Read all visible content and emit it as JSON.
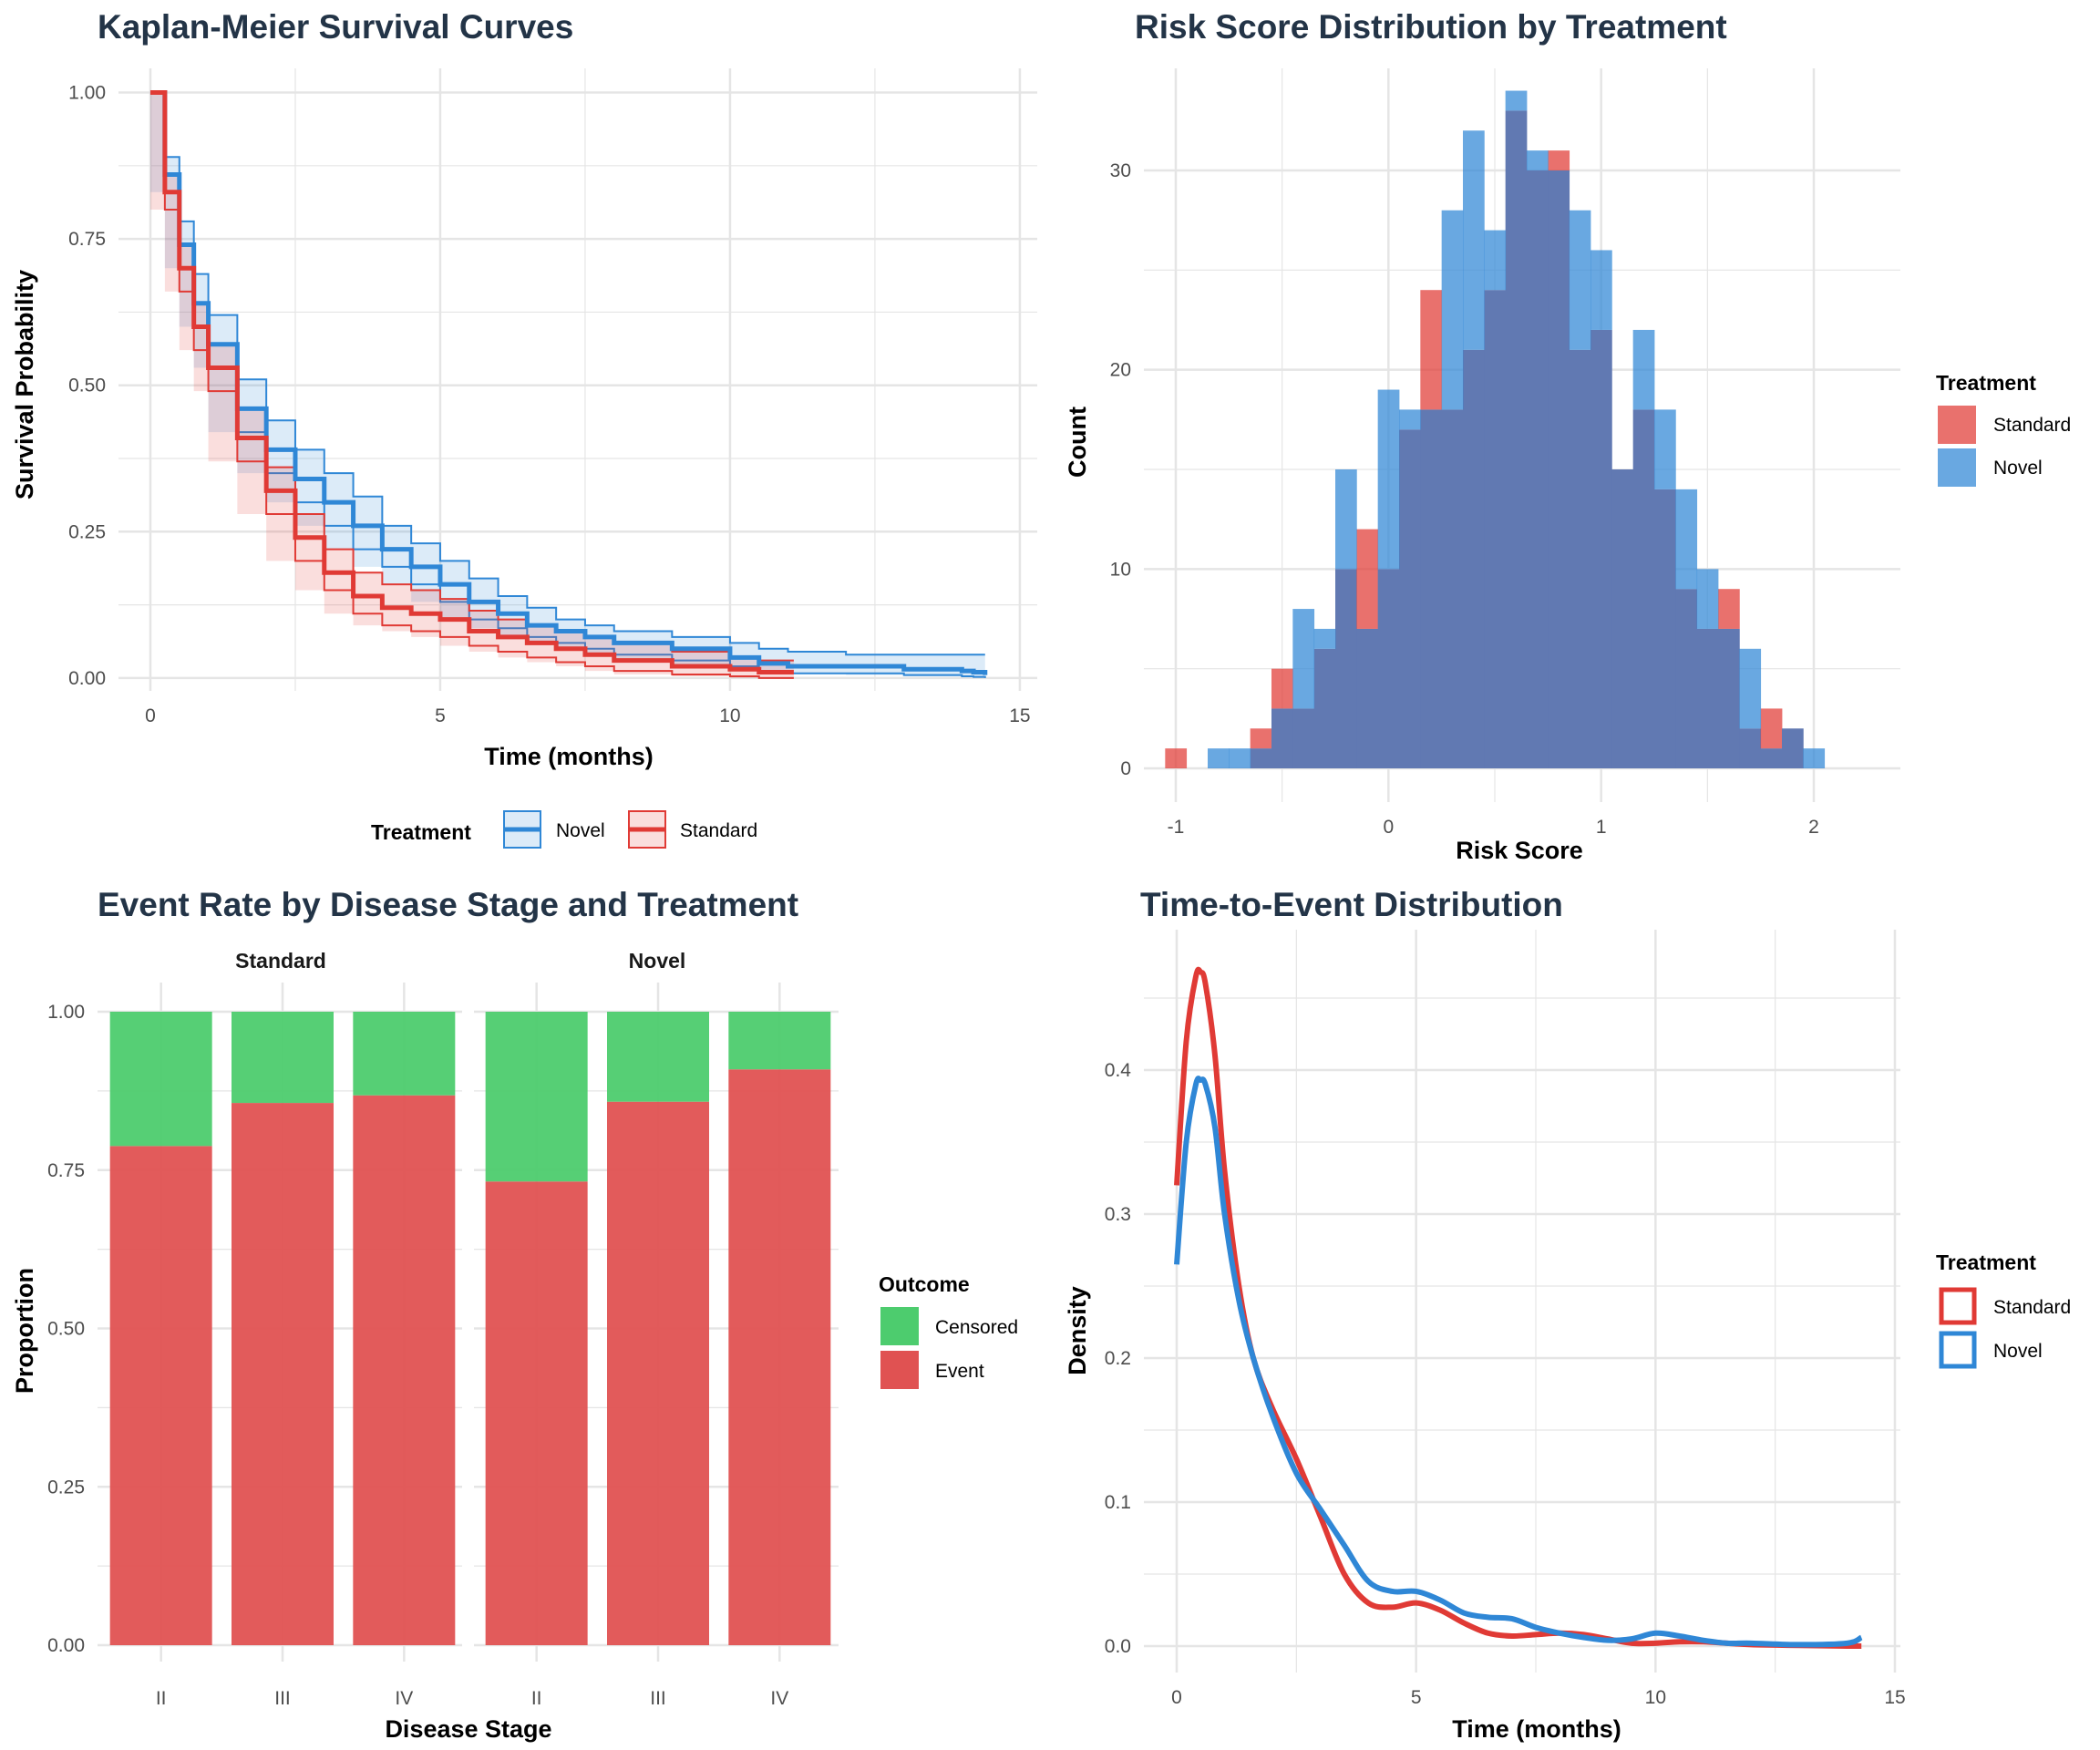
{
  "colors": {
    "standard": "#e03a35",
    "novel": "#2f87d6",
    "censored": "#4dcc6e",
    "event": "#e05252",
    "overlap": "#6179b2",
    "grid": "#e5e5e5",
    "title": "#233447"
  },
  "chart_data": [
    {
      "id": "km",
      "type": "line",
      "title": "Kaplan-Meier Survival Curves",
      "xlabel": "Time (months)",
      "ylabel": "Survival Probability",
      "xlim": [
        0,
        15
      ],
      "ylim": [
        0,
        1
      ],
      "xticks": [
        0,
        5,
        10,
        15
      ],
      "yticks": [
        0.0,
        0.25,
        0.5,
        0.75,
        1.0
      ],
      "ytick_labels": [
        "0.00",
        "0.25",
        "0.50",
        "0.75",
        "1.00"
      ],
      "legend": {
        "title": "Treatment",
        "position": "bottom",
        "entries": [
          "Novel",
          "Standard"
        ]
      },
      "series": [
        {
          "name": "Novel",
          "x": [
            0,
            0.25,
            0.5,
            0.75,
            1,
            1.5,
            2,
            2.5,
            3,
            3.5,
            4,
            4.5,
            5,
            5.5,
            6,
            6.5,
            7,
            7.5,
            8,
            9,
            10,
            10.5,
            11,
            12,
            13,
            14,
            14.2,
            14.4
          ],
          "y": [
            1.0,
            0.86,
            0.74,
            0.64,
            0.57,
            0.46,
            0.39,
            0.34,
            0.3,
            0.26,
            0.22,
            0.19,
            0.16,
            0.13,
            0.11,
            0.09,
            0.08,
            0.07,
            0.06,
            0.05,
            0.035,
            0.025,
            0.02,
            0.02,
            0.015,
            0.012,
            0.01,
            0.005
          ],
          "lower": [
            1.0,
            0.83,
            0.7,
            0.6,
            0.53,
            0.42,
            0.35,
            0.3,
            0.26,
            0.22,
            0.19,
            0.16,
            0.13,
            0.1,
            0.085,
            0.07,
            0.06,
            0.05,
            0.04,
            0.03,
            0.02,
            0.012,
            0.008,
            0.008,
            0.005,
            0.003,
            0.002,
            0.0
          ],
          "upper": [
            1.0,
            0.89,
            0.78,
            0.69,
            0.62,
            0.51,
            0.44,
            0.39,
            0.35,
            0.31,
            0.26,
            0.23,
            0.2,
            0.17,
            0.14,
            0.12,
            0.1,
            0.09,
            0.08,
            0.07,
            0.06,
            0.05,
            0.045,
            0.04,
            0.04,
            0.04,
            0.04,
            0.04
          ],
          "censor_end": 14.4
        },
        {
          "name": "Standard",
          "x": [
            0,
            0.25,
            0.5,
            0.75,
            1,
            1.5,
            2,
            2.5,
            3,
            3.5,
            4,
            4.5,
            5,
            5.5,
            6,
            6.5,
            7,
            7.5,
            8,
            9,
            10,
            10.5,
            11,
            11.1
          ],
          "y": [
            1.0,
            0.83,
            0.7,
            0.6,
            0.53,
            0.41,
            0.32,
            0.24,
            0.18,
            0.14,
            0.12,
            0.11,
            0.1,
            0.08,
            0.07,
            0.06,
            0.05,
            0.04,
            0.03,
            0.02,
            0.015,
            0.01,
            0.01,
            0.01
          ],
          "lower": [
            1.0,
            0.8,
            0.66,
            0.56,
            0.49,
            0.37,
            0.28,
            0.2,
            0.15,
            0.11,
            0.09,
            0.08,
            0.07,
            0.055,
            0.045,
            0.035,
            0.027,
            0.02,
            0.012,
            0.006,
            0.003,
            0.0,
            0.0,
            0.0
          ],
          "upper": [
            1.0,
            0.86,
            0.74,
            0.64,
            0.57,
            0.46,
            0.36,
            0.28,
            0.22,
            0.18,
            0.16,
            0.15,
            0.135,
            0.115,
            0.1,
            0.09,
            0.08,
            0.07,
            0.06,
            0.045,
            0.035,
            0.03,
            0.03,
            0.03
          ],
          "censor_end": 11.1
        }
      ]
    },
    {
      "id": "hist",
      "type": "bar",
      "title": "Risk Score Distribution by Treatment",
      "xlabel": "Risk Score",
      "ylabel": "Count",
      "xlim": [
        -1.1,
        2.4
      ],
      "ylim": [
        0,
        35
      ],
      "xticks": [
        -1,
        0,
        1,
        2
      ],
      "yticks": [
        0,
        10,
        20,
        30
      ],
      "bin_start": -1.05,
      "bin_width": 0.1,
      "legend": {
        "title": "Treatment",
        "position": "right",
        "entries": [
          "Standard",
          "Novel"
        ]
      },
      "series": [
        {
          "name": "Standard",
          "values": [
            1,
            0,
            0,
            0,
            2,
            5,
            3,
            6,
            10,
            12,
            10,
            17,
            24,
            18,
            21,
            24,
            33,
            30,
            31,
            21,
            22,
            15,
            18,
            14,
            9,
            7,
            9,
            2,
            3,
            2,
            0,
            0,
            0,
            0
          ]
        },
        {
          "name": "Novel",
          "values": [
            0,
            0,
            1,
            1,
            1,
            3,
            8,
            7,
            15,
            7,
            19,
            18,
            18,
            28,
            32,
            27,
            34,
            31,
            30,
            28,
            26,
            15,
            22,
            18,
            14,
            10,
            7,
            6,
            1,
            2,
            1,
            0,
            0,
            0
          ]
        }
      ]
    },
    {
      "id": "stage",
      "type": "bar",
      "title": "Event Rate by Disease Stage and Treatment",
      "xlabel": "Disease Stage",
      "ylabel": "Proportion",
      "ylim": [
        0,
        1
      ],
      "yticks": [
        0.0,
        0.25,
        0.5,
        0.75,
        1.0
      ],
      "ytick_labels": [
        "0.00",
        "0.25",
        "0.50",
        "0.75",
        "1.00"
      ],
      "categories": [
        "II",
        "III",
        "IV"
      ],
      "legend": {
        "title": "Outcome",
        "position": "right",
        "entries": [
          "Censored",
          "Event"
        ]
      },
      "facets": [
        {
          "name": "Standard",
          "event": [
            0.788,
            0.856,
            0.868
          ],
          "censored": [
            0.212,
            0.144,
            0.132
          ]
        },
        {
          "name": "Novel",
          "event": [
            0.732,
            0.858,
            0.909
          ],
          "censored": [
            0.268,
            0.142,
            0.091
          ]
        }
      ]
    },
    {
      "id": "density",
      "type": "line",
      "title": "Time-to-Event Distribution",
      "xlabel": "Time (months)",
      "ylabel": "Density",
      "xlim": [
        0,
        15
      ],
      "ylim": [
        0,
        0.48
      ],
      "xticks": [
        0,
        5,
        10,
        15
      ],
      "yticks": [
        0.0,
        0.1,
        0.2,
        0.3,
        0.4
      ],
      "ytick_labels": [
        "0.0",
        "0.1",
        "0.2",
        "0.3",
        "0.4"
      ],
      "legend": {
        "title": "Treatment",
        "position": "right",
        "entries": [
          "Standard",
          "Novel"
        ]
      },
      "series": [
        {
          "name": "Standard",
          "x": [
            0,
            0.2,
            0.4,
            0.5,
            0.6,
            0.8,
            1,
            1.3,
            1.6,
            2,
            2.5,
            3,
            3.5,
            4,
            4.5,
            5,
            5.5,
            6,
            6.5,
            7,
            7.5,
            8,
            8.5,
            9,
            9.5,
            10,
            10.5,
            11,
            11.5,
            12,
            13,
            14,
            14.3
          ],
          "y": [
            0.32,
            0.42,
            0.465,
            0.468,
            0.46,
            0.41,
            0.33,
            0.25,
            0.2,
            0.165,
            0.13,
            0.09,
            0.05,
            0.03,
            0.027,
            0.03,
            0.025,
            0.016,
            0.009,
            0.007,
            0.008,
            0.009,
            0.008,
            0.005,
            0.002,
            0.002,
            0.003,
            0.003,
            0.002,
            0.001,
            0.0005,
            0.0,
            0.0
          ]
        },
        {
          "name": "Novel",
          "x": [
            0,
            0.2,
            0.4,
            0.5,
            0.6,
            0.8,
            1,
            1.3,
            1.6,
            2,
            2.5,
            3,
            3.5,
            4,
            4.5,
            5,
            5.5,
            6,
            6.5,
            7,
            7.5,
            8,
            8.5,
            9,
            9.5,
            10,
            10.5,
            11,
            11.5,
            12,
            13,
            14,
            14.3
          ],
          "y": [
            0.265,
            0.35,
            0.39,
            0.393,
            0.39,
            0.36,
            0.3,
            0.24,
            0.2,
            0.16,
            0.12,
            0.095,
            0.07,
            0.045,
            0.038,
            0.038,
            0.032,
            0.023,
            0.02,
            0.019,
            0.013,
            0.009,
            0.006,
            0.004,
            0.005,
            0.009,
            0.007,
            0.004,
            0.002,
            0.002,
            0.001,
            0.002,
            0.006
          ]
        }
      ]
    }
  ]
}
